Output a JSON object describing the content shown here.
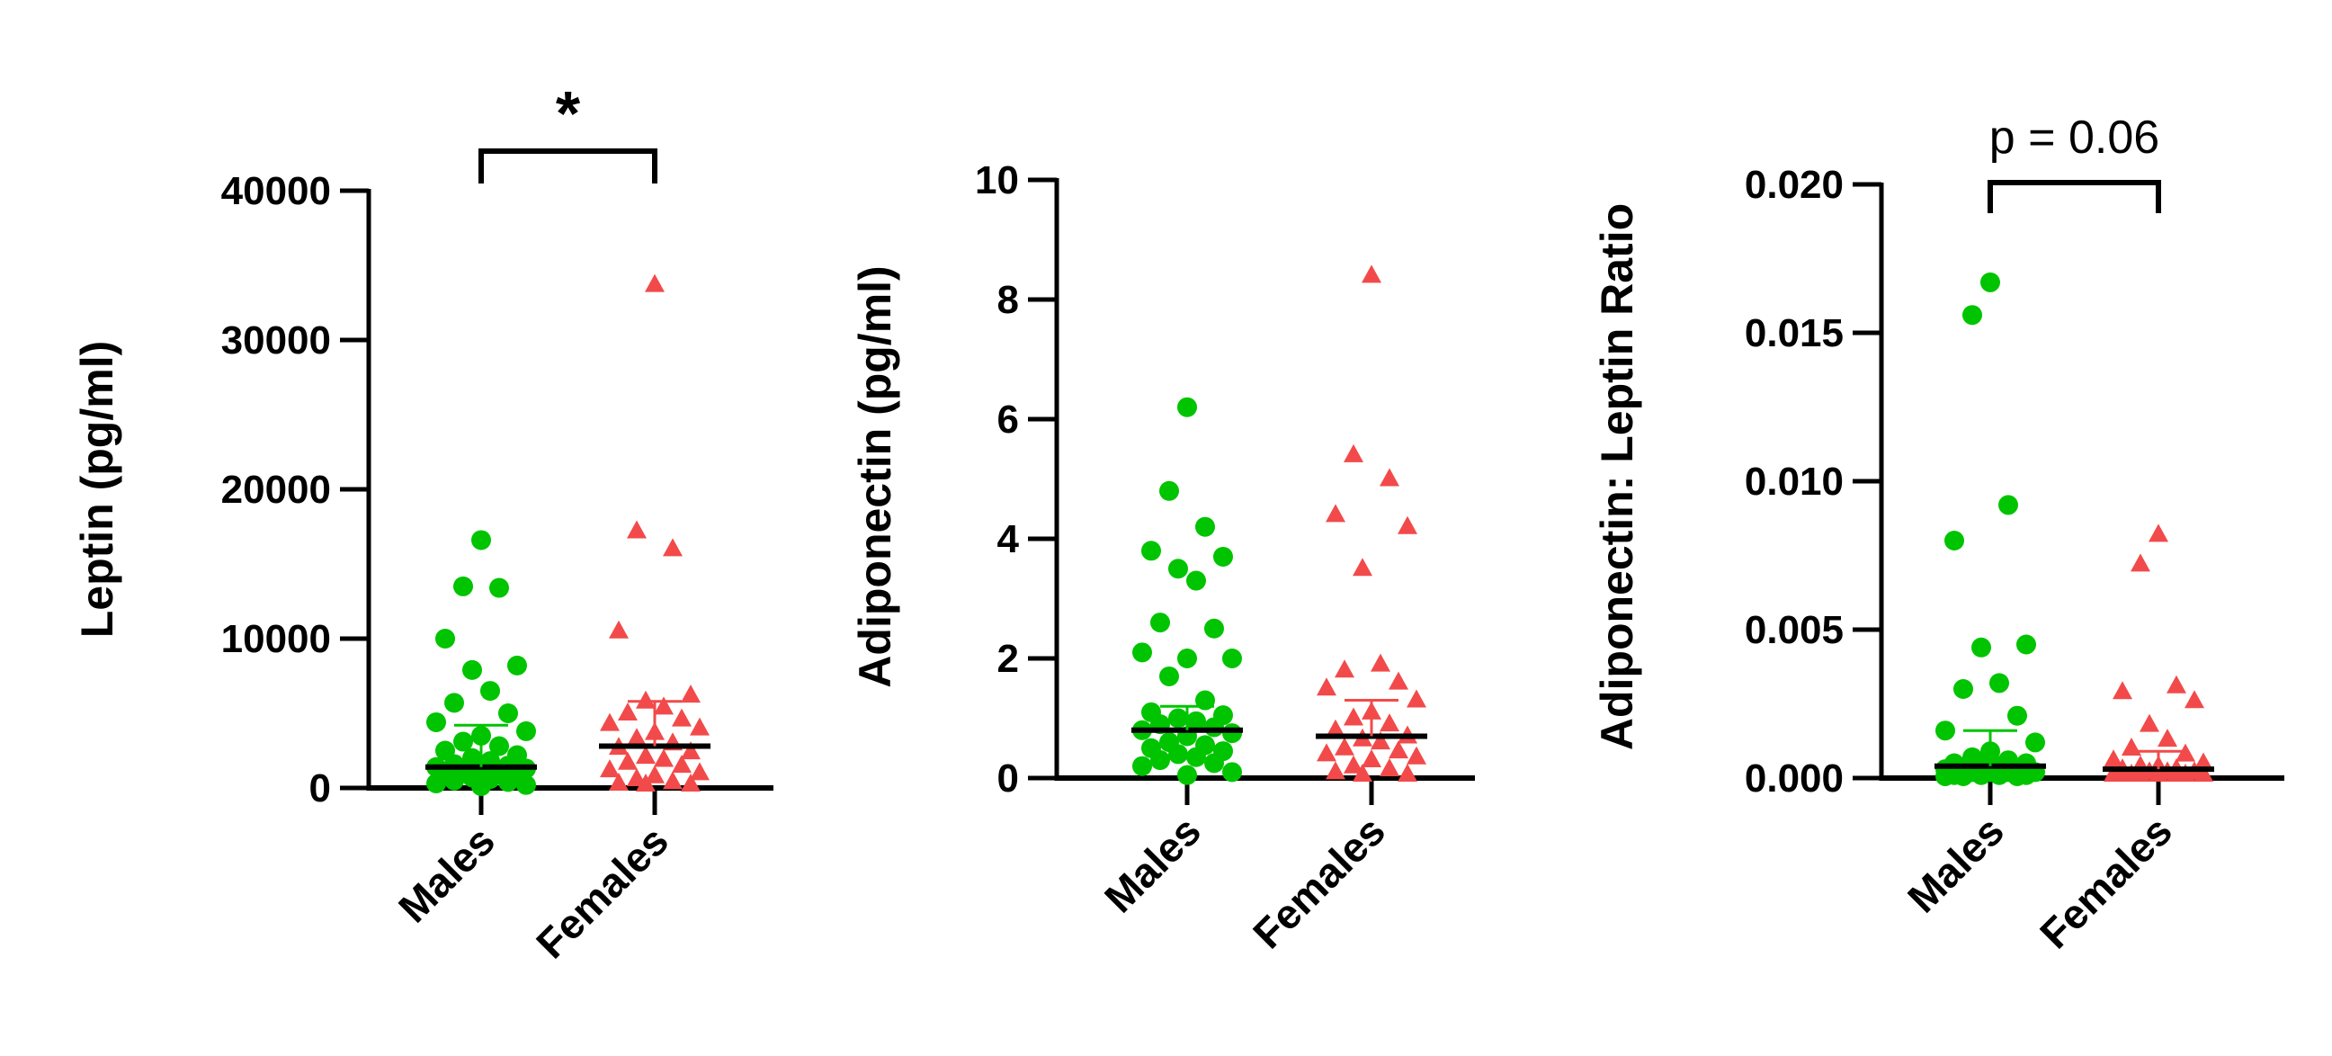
{
  "colors": {
    "males": "#00c400",
    "females": "#f24a4a",
    "axis": "#000000"
  },
  "chart_data": [
    {
      "type": "scatter",
      "ylabel": "Leptin (pg/ml)",
      "ylim": [
        0,
        40000
      ],
      "yticks": [
        "0",
        "10000",
        "20000",
        "30000",
        "40000"
      ],
      "ytick_values": [
        0,
        10000,
        20000,
        30000,
        40000
      ],
      "categories": [
        "Males",
        "Females"
      ],
      "significance": "*",
      "series": [
        {
          "name": "Males",
          "marker": "circle",
          "values": [
            16600,
            13500,
            13400,
            10000,
            8200,
            7900,
            6500,
            5700,
            5000,
            4400,
            3800,
            3500,
            3100,
            2800,
            2500,
            2200,
            2000,
            1800,
            1600,
            1500,
            1400,
            1300,
            1200,
            1100,
            1000,
            900,
            800,
            700,
            600,
            500,
            400,
            300,
            200,
            100
          ],
          "median": 1400,
          "mean_upper": 4200
        },
        {
          "name": "Females",
          "marker": "triangle",
          "values": [
            33700,
            17200,
            16000,
            10500,
            6200,
            5800,
            5400,
            5000,
            4600,
            4300,
            4000,
            3700,
            3300,
            3000,
            2700,
            2400,
            2100,
            1900,
            1700,
            1500,
            1200,
            1000,
            800,
            600,
            400,
            300,
            150,
            50
          ],
          "median": 2800,
          "mean_upper": 5800
        }
      ]
    },
    {
      "type": "scatter",
      "ylabel": "Adiponectin (pg/ml)",
      "ylim": [
        0,
        10
      ],
      "yticks": [
        "0",
        "2",
        "4",
        "6",
        "8",
        "10"
      ],
      "ytick_values": [
        0,
        2,
        4,
        6,
        8,
        10
      ],
      "categories": [
        "Males",
        "Females"
      ],
      "significance": "",
      "series": [
        {
          "name": "Males",
          "marker": "circle",
          "values": [
            6.2,
            4.8,
            4.2,
            3.8,
            3.7,
            3.5,
            3.3,
            2.6,
            2.5,
            2.1,
            2.0,
            2.0,
            1.7,
            1.3,
            1.1,
            1.05,
            1.0,
            0.95,
            0.9,
            0.85,
            0.8,
            0.75,
            0.7,
            0.6,
            0.55,
            0.5,
            0.45,
            0.4,
            0.35,
            0.3,
            0.25,
            0.2,
            0.1,
            0.05
          ],
          "median": 0.8,
          "mean_upper": 1.2
        },
        {
          "name": "Females",
          "marker": "triangle",
          "values": [
            8.4,
            5.4,
            5.0,
            4.4,
            4.2,
            3.5,
            1.9,
            1.8,
            1.6,
            1.5,
            1.3,
            1.1,
            1.0,
            0.9,
            0.8,
            0.7,
            0.65,
            0.6,
            0.5,
            0.45,
            0.4,
            0.35,
            0.3,
            0.2,
            0.15,
            0.1,
            0.05,
            0.0
          ],
          "median": 0.7,
          "mean_upper": 1.3
        }
      ]
    },
    {
      "type": "scatter",
      "ylabel": "Adiponectin:  Leptin Ratio",
      "ylim": [
        0,
        0.02
      ],
      "yticks": [
        "0.000",
        "0.005",
        "0.010",
        "0.015",
        "0.020"
      ],
      "ytick_values": [
        0,
        0.005,
        0.01,
        0.015,
        0.02
      ],
      "categories": [
        "Males",
        "Females"
      ],
      "significance": "p = 0.06",
      "series": [
        {
          "name": "Males",
          "marker": "circle",
          "values": [
            0.0167,
            0.0156,
            0.0092,
            0.008,
            0.0045,
            0.0044,
            0.0032,
            0.003,
            0.0021,
            0.0016,
            0.0012,
            0.0009,
            0.0007,
            0.0006,
            0.0005,
            0.0005,
            0.0004,
            0.0004,
            0.0003,
            0.0003,
            0.0003,
            0.0002,
            0.0002,
            0.0002,
            0.0002,
            0.0001,
            0.0001,
            0.0001,
            0.0001,
            5e-05,
            5e-05,
            3e-05
          ],
          "median": 0.0004,
          "mean_upper": 0.0016
        },
        {
          "name": "Females",
          "marker": "triangle",
          "values": [
            0.0082,
            0.0072,
            0.0031,
            0.0029,
            0.0026,
            0.0018,
            0.0013,
            0.001,
            0.0008,
            0.0006,
            0.0005,
            0.0004,
            0.0004,
            0.0003,
            0.0003,
            0.0002,
            0.0002,
            0.0002,
            0.0001,
            0.0001,
            0.0001,
            0.0001,
            5e-05,
            5e-05,
            3e-05,
            2e-05
          ],
          "median": 0.0003,
          "mean_upper": 0.0009
        }
      ]
    }
  ]
}
